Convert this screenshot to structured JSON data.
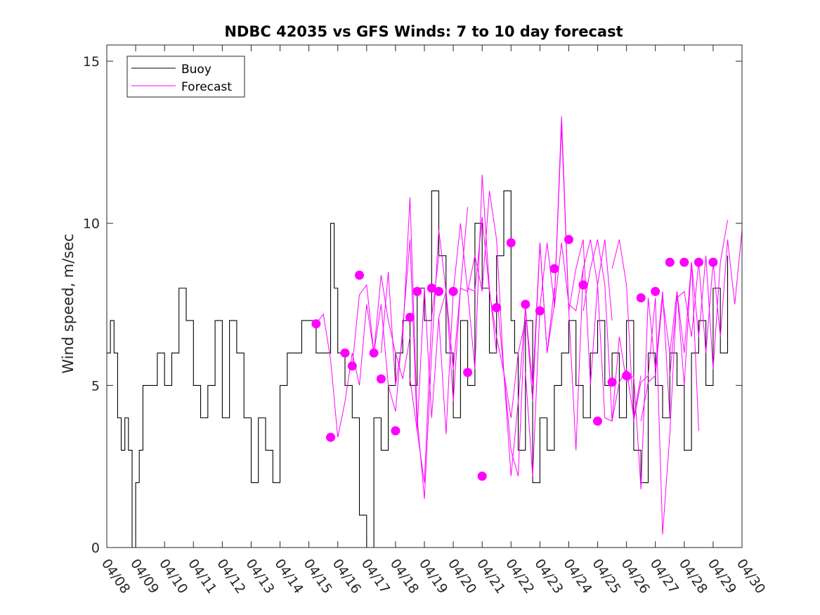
{
  "chart_data": {
    "type": "line",
    "title": "NDBC 42035 vs GFS Winds: 7 to 10 day forecast",
    "xlabel": "",
    "ylabel": "Wind speed, m/sec",
    "ylim": [
      0,
      15.5
    ],
    "xlim": [
      "04/08",
      "04/30"
    ],
    "x_ticks": [
      "04/08",
      "04/09",
      "04/10",
      "04/11",
      "04/12",
      "04/13",
      "04/14",
      "04/15",
      "04/16",
      "04/17",
      "04/18",
      "04/19",
      "04/20",
      "04/21",
      "04/22",
      "04/23",
      "04/24",
      "04/25",
      "04/26",
      "04/27",
      "04/28",
      "04/29",
      "04/30"
    ],
    "y_ticks": [
      0,
      5,
      10,
      15
    ],
    "grid": false,
    "legend": {
      "placement": "top-left",
      "entries": [
        "Buoy",
        "Forecast"
      ]
    },
    "colors": {
      "buoy": "#000000",
      "forecast": "#ff00ff"
    },
    "series": [
      {
        "name": "Buoy",
        "style": "line",
        "x": [
          "04/08 00:00",
          "04/08 03:00",
          "04/08 06:00",
          "04/08 09:00",
          "04/08 12:00",
          "04/08 15:00",
          "04/08 18:00",
          "04/08 21:00",
          "04/09 00:00",
          "04/09 03:00",
          "04/09 06:00",
          "04/09 12:00",
          "04/09 18:00",
          "04/10 00:00",
          "04/10 06:00",
          "04/10 12:00",
          "04/10 18:00",
          "04/11 00:00",
          "04/11 06:00",
          "04/11 12:00",
          "04/11 18:00",
          "04/12 00:00",
          "04/12 06:00",
          "04/12 12:00",
          "04/12 18:00",
          "04/13 00:00",
          "04/13 06:00",
          "04/13 12:00",
          "04/13 18:00",
          "04/14 00:00",
          "04/14 06:00",
          "04/14 12:00",
          "04/14 18:00",
          "04/15 00:00",
          "04/15 06:00",
          "04/15 12:00",
          "04/15 18:00",
          "04/15 21:00",
          "04/16 00:00",
          "04/16 06:00",
          "04/16 12:00",
          "04/16 18:00",
          "04/17 00:00",
          "04/17 06:00",
          "04/17 12:00",
          "04/17 18:00",
          "04/18 00:00",
          "04/18 06:00",
          "04/18 12:00",
          "04/18 18:00",
          "04/19 00:00",
          "04/19 06:00",
          "04/19 12:00",
          "04/19 18:00",
          "04/20 00:00",
          "04/20 06:00",
          "04/20 12:00",
          "04/20 18:00",
          "04/21 00:00",
          "04/21 06:00",
          "04/21 12:00",
          "04/21 18:00",
          "04/22 00:00",
          "04/22 03:00",
          "04/22 06:00",
          "04/22 12:00",
          "04/22 18:00",
          "04/23 00:00",
          "04/23 06:00",
          "04/23 12:00",
          "04/23 18:00",
          "04/24 00:00",
          "04/24 06:00",
          "04/24 12:00",
          "04/24 18:00",
          "04/25 00:00",
          "04/25 06:00",
          "04/25 12:00",
          "04/25 18:00",
          "04/26 00:00",
          "04/26 06:00",
          "04/26 12:00",
          "04/26 18:00",
          "04/27 00:00",
          "04/27 06:00",
          "04/27 12:00",
          "04/27 18:00",
          "04/28 00:00",
          "04/28 06:00",
          "04/28 12:00",
          "04/28 18:00",
          "04/29 00:00",
          "04/29 06:00",
          "04/29 12:00"
        ],
        "y": [
          6,
          7,
          6,
          4,
          3,
          4,
          3,
          0,
          2,
          3,
          5,
          5,
          6,
          5,
          6,
          8,
          7,
          5,
          4,
          5,
          7,
          4,
          7,
          6,
          4,
          2,
          4,
          3,
          2,
          5,
          6,
          6,
          7,
          7,
          6,
          6,
          10,
          8,
          6,
          5,
          4,
          1,
          0,
          4,
          3,
          5,
          6,
          7,
          5,
          8,
          7,
          11,
          9,
          6,
          4,
          7,
          5,
          10,
          8,
          6,
          9,
          11,
          7,
          6,
          3,
          7,
          2,
          4,
          3,
          5,
          6,
          7,
          5,
          4,
          6,
          7,
          5,
          6,
          4,
          7,
          3,
          2,
          6,
          5,
          4,
          6,
          5,
          3,
          6,
          7,
          5,
          8,
          6,
          9
        ]
      },
      {
        "name": "Forecast",
        "style": "line",
        "runs": [
          {
            "x": [
              "04/15 06:00",
              "04/15 12:00",
              "04/15 18:00",
              "04/16 00:00",
              "04/16 06:00",
              "04/16 12:00",
              "04/16 18:00",
              "04/17 00:00",
              "04/17 06:00",
              "04/17 12:00",
              "04/17 18:00",
              "04/18 00:00",
              "04/18 06:00",
              "04/18 12:00"
            ],
            "y": [
              6.9,
              7.2,
              5.8,
              3.4,
              4.5,
              6.0,
              5.0,
              7.5,
              6.0,
              8.4,
              7.0,
              6.0,
              5.2,
              6.5
            ]
          },
          {
            "x": [
              "04/16 12:00",
              "04/16 18:00",
              "04/17 00:00",
              "04/17 06:00",
              "04/17 12:00",
              "04/17 18:00",
              "04/18 00:00",
              "04/18 06:00",
              "04/18 12:00",
              "04/18 18:00",
              "04/19 00:00",
              "04/19 06:00",
              "04/19 12:00"
            ],
            "y": [
              5.6,
              7.8,
              8.1,
              6.0,
              7.5,
              5.0,
              4.2,
              6.8,
              9.5,
              3.6,
              2.0,
              7.1,
              9.0
            ]
          },
          {
            "x": [
              "04/17 12:00",
              "04/17 18:00",
              "04/18 00:00",
              "04/18 06:00",
              "04/18 12:00",
              "04/18 18:00",
              "04/19 00:00",
              "04/19 06:00",
              "04/19 12:00",
              "04/19 18:00",
              "04/20 00:00",
              "04/20 06:00",
              "04/20 12:00"
            ],
            "y": [
              6.0,
              8.5,
              5.0,
              6.5,
              10.8,
              4.0,
              1.5,
              6.0,
              9.8,
              7.9,
              4.5,
              8.0,
              10.5
            ]
          },
          {
            "x": [
              "04/18 12:00",
              "04/18 18:00",
              "04/19 00:00",
              "04/19 06:00",
              "04/19 12:00",
              "04/19 18:00",
              "04/20 00:00",
              "04/20 06:00",
              "04/20 12:00",
              "04/20 18:00",
              "04/21 00:00",
              "04/21 06:00",
              "04/21 12:00"
            ],
            "y": [
              5.2,
              3.6,
              8.0,
              4.0,
              7.1,
              3.5,
              7.9,
              10.0,
              7.9,
              5.5,
              11.5,
              8.0,
              6.0
            ]
          },
          {
            "x": [
              "04/19 12:00",
              "04/19 18:00",
              "04/20 00:00",
              "04/20 06:00",
              "04/20 12:00",
              "04/20 18:00",
              "04/21 00:00",
              "04/21 06:00",
              "04/21 12:00",
              "04/21 18:00",
              "04/22 00:00",
              "04/22 06:00",
              "04/22 12:00"
            ],
            "y": [
              7.1,
              7.9,
              5.5,
              8.0,
              7.9,
              9.0,
              7.9,
              11.0,
              9.5,
              5.4,
              4.0,
              6.0,
              7.0
            ]
          },
          {
            "x": [
              "04/20 12:00",
              "04/20 18:00",
              "04/21 00:00",
              "04/21 06:00",
              "04/21 12:00",
              "04/21 18:00",
              "04/22 00:00",
              "04/22 06:00",
              "04/22 12:00",
              "04/22 18:00",
              "04/23 00:00",
              "04/23 06:00",
              "04/23 12:00"
            ],
            "y": [
              8.0,
              7.9,
              10.2,
              7.9,
              6.5,
              5.4,
              2.2,
              4.5,
              7.4,
              5.0,
              9.4,
              6.0,
              8.0
            ]
          },
          {
            "x": [
              "04/21 12:00",
              "04/21 18:00",
              "04/22 00:00",
              "04/22 06:00",
              "04/22 12:00",
              "04/22 18:00",
              "04/23 00:00",
              "04/23 06:00",
              "04/23 12:00",
              "04/23 18:00",
              "04/24 00:00",
              "04/24 06:00",
              "04/24 12:00"
            ],
            "y": [
              7.9,
              5.4,
              3.0,
              2.2,
              7.4,
              4.5,
              9.4,
              6.0,
              7.5,
              13.0,
              7.3,
              3.0,
              8.6
            ]
          },
          {
            "x": [
              "04/22 12:00",
              "04/22 18:00",
              "04/23 00:00",
              "04/23 06:00",
              "04/23 12:00",
              "04/23 18:00",
              "04/24 00:00",
              "04/24 06:00",
              "04/24 12:00",
              "04/24 18:00",
              "04/25 00:00",
              "04/25 06:00",
              "04/25 12:00"
            ],
            "y": [
              5.4,
              2.2,
              7.4,
              9.4,
              7.5,
              13.3,
              7.3,
              8.6,
              9.5,
              5.0,
              8.1,
              9.5,
              7.0
            ]
          },
          {
            "x": [
              "04/23 12:00",
              "04/23 18:00",
              "04/24 00:00",
              "04/24 06:00",
              "04/24 12:00",
              "04/24 18:00",
              "04/25 00:00",
              "04/25 06:00",
              "04/25 12:00",
              "04/25 18:00",
              "04/26 00:00",
              "04/26 06:00",
              "04/26 12:00"
            ],
            "y": [
              7.4,
              9.4,
              7.5,
              7.3,
              8.6,
              9.5,
              8.1,
              4.0,
              3.9,
              5.1,
              5.5,
              4.0,
              5.3
            ]
          },
          {
            "x": [
              "04/24 12:00",
              "04/24 18:00",
              "04/25 00:00",
              "04/25 06:00",
              "04/25 12:00",
              "04/25 18:00",
              "04/26 00:00",
              "04/26 06:00",
              "04/26 12:00",
              "04/26 18:00",
              "04/27 00:00",
              "04/27 06:00",
              "04/27 12:00"
            ],
            "y": [
              7.3,
              8.6,
              9.5,
              8.1,
              3.9,
              6.5,
              5.1,
              5.3,
              1.8,
              7.7,
              5.5,
              7.9,
              4.0
            ]
          },
          {
            "x": [
              "04/25 12:00",
              "04/25 18:00",
              "04/26 00:00",
              "04/26 06:00",
              "04/26 12:00",
              "04/26 18:00",
              "04/27 00:00",
              "04/27 06:00",
              "04/27 12:00",
              "04/27 18:00",
              "04/28 00:00",
              "04/28 06:00",
              "04/28 12:00"
            ],
            "y": [
              8.6,
              9.5,
              8.1,
              3.9,
              5.1,
              5.3,
              7.7,
              0.4,
              3.5,
              7.9,
              6.0,
              8.8,
              3.6
            ]
          },
          {
            "x": [
              "04/26 12:00",
              "04/26 18:00",
              "04/27 00:00",
              "04/27 06:00",
              "04/27 12:00",
              "04/27 18:00",
              "04/28 00:00",
              "04/28 06:00",
              "04/28 12:00",
              "04/28 18:00",
              "04/29 00:00",
              "04/29 06:00",
              "04/29 12:00"
            ],
            "y": [
              3.9,
              5.1,
              5.3,
              7.7,
              6.0,
              7.9,
              5.0,
              8.8,
              6.5,
              9.0,
              5.5,
              8.8,
              10.1
            ]
          },
          {
            "x": [
              "04/27 12:00",
              "04/27 18:00",
              "04/28 00:00",
              "04/28 06:00",
              "04/28 12:00",
              "04/28 18:00",
              "04/29 00:00",
              "04/29 06:00",
              "04/29 12:00",
              "04/29 18:00",
              "04/30 00:00"
            ],
            "y": [
              5.3,
              7.7,
              7.9,
              6.5,
              8.8,
              6.0,
              8.8,
              6.5,
              9.5,
              7.5,
              9.8
            ]
          }
        ]
      },
      {
        "name": "Forecast",
        "style": "markers",
        "x": [
          "04/15 06:00",
          "04/15 18:00",
          "04/16 06:00",
          "04/16 12:00",
          "04/16 18:00",
          "04/17 06:00",
          "04/17 12:00",
          "04/18 00:00",
          "04/18 12:00",
          "04/18 18:00",
          "04/19 06:00",
          "04/19 12:00",
          "04/20 00:00",
          "04/20 12:00",
          "04/21 00:00",
          "04/21 12:00",
          "04/22 00:00",
          "04/22 12:00",
          "04/23 00:00",
          "04/23 12:00",
          "04/24 00:00",
          "04/24 12:00",
          "04/25 00:00",
          "04/25 12:00",
          "04/26 00:00",
          "04/26 12:00",
          "04/27 00:00",
          "04/27 12:00",
          "04/28 00:00",
          "04/28 12:00",
          "04/29 00:00"
        ],
        "y": [
          6.9,
          3.4,
          6.0,
          5.6,
          8.4,
          6.0,
          5.2,
          3.6,
          7.1,
          7.9,
          8.0,
          7.9,
          7.9,
          5.4,
          2.2,
          7.4,
          9.4,
          7.5,
          7.3,
          8.6,
          9.5,
          8.1,
          3.9,
          5.1,
          5.3,
          7.7,
          7.9,
          8.8,
          8.8,
          8.8,
          8.8
        ]
      }
    ]
  }
}
